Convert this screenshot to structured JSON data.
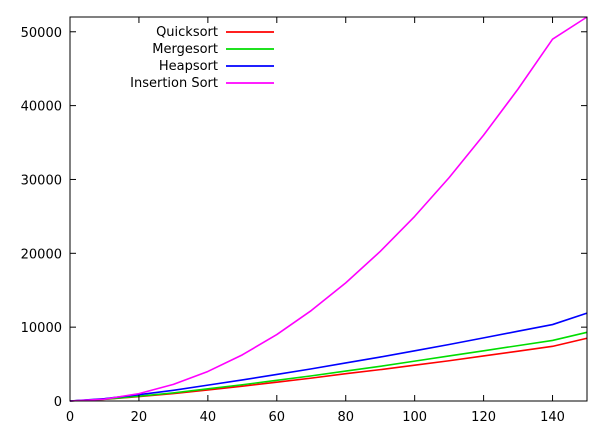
{
  "chart_data": {
    "type": "line",
    "title": "",
    "xlabel": "",
    "ylabel": "",
    "xlim": [
      0,
      150
    ],
    "ylim": [
      0,
      52000
    ],
    "x_ticks": [
      0,
      20,
      40,
      60,
      80,
      100,
      120,
      140
    ],
    "y_ticks": [
      0,
      10000,
      20000,
      30000,
      40000,
      50000
    ],
    "grid": false,
    "legend_position": "top-left",
    "x": [
      0,
      10,
      20,
      30,
      40,
      50,
      60,
      70,
      80,
      90,
      100,
      110,
      120,
      130,
      140,
      150
    ],
    "series": [
      {
        "name": "Quicksort",
        "color": "#ff0000",
        "values": [
          0,
          230,
          600,
          1000,
          1500,
          2000,
          2550,
          3100,
          3700,
          4250,
          4850,
          5450,
          6100,
          6750,
          7400,
          8500
        ]
      },
      {
        "name": "Mergesort",
        "color": "#00dd00",
        "values": [
          0,
          250,
          650,
          1100,
          1650,
          2200,
          2800,
          3400,
          4050,
          4700,
          5400,
          6100,
          6800,
          7500,
          8200,
          9300
        ]
      },
      {
        "name": "Heapsort",
        "color": "#0000ff",
        "values": [
          0,
          320,
          850,
          1450,
          2150,
          2850,
          3600,
          4350,
          5150,
          5950,
          6800,
          7650,
          8550,
          9450,
          10350,
          11900
        ]
      },
      {
        "name": "Insertion Sort",
        "color": "#ff00ff",
        "values": [
          0,
          250,
          1000,
          2250,
          4000,
          6250,
          9000,
          12250,
          16000,
          20250,
          25000,
          30250,
          36000,
          42250,
          49000,
          52000
        ]
      }
    ]
  }
}
